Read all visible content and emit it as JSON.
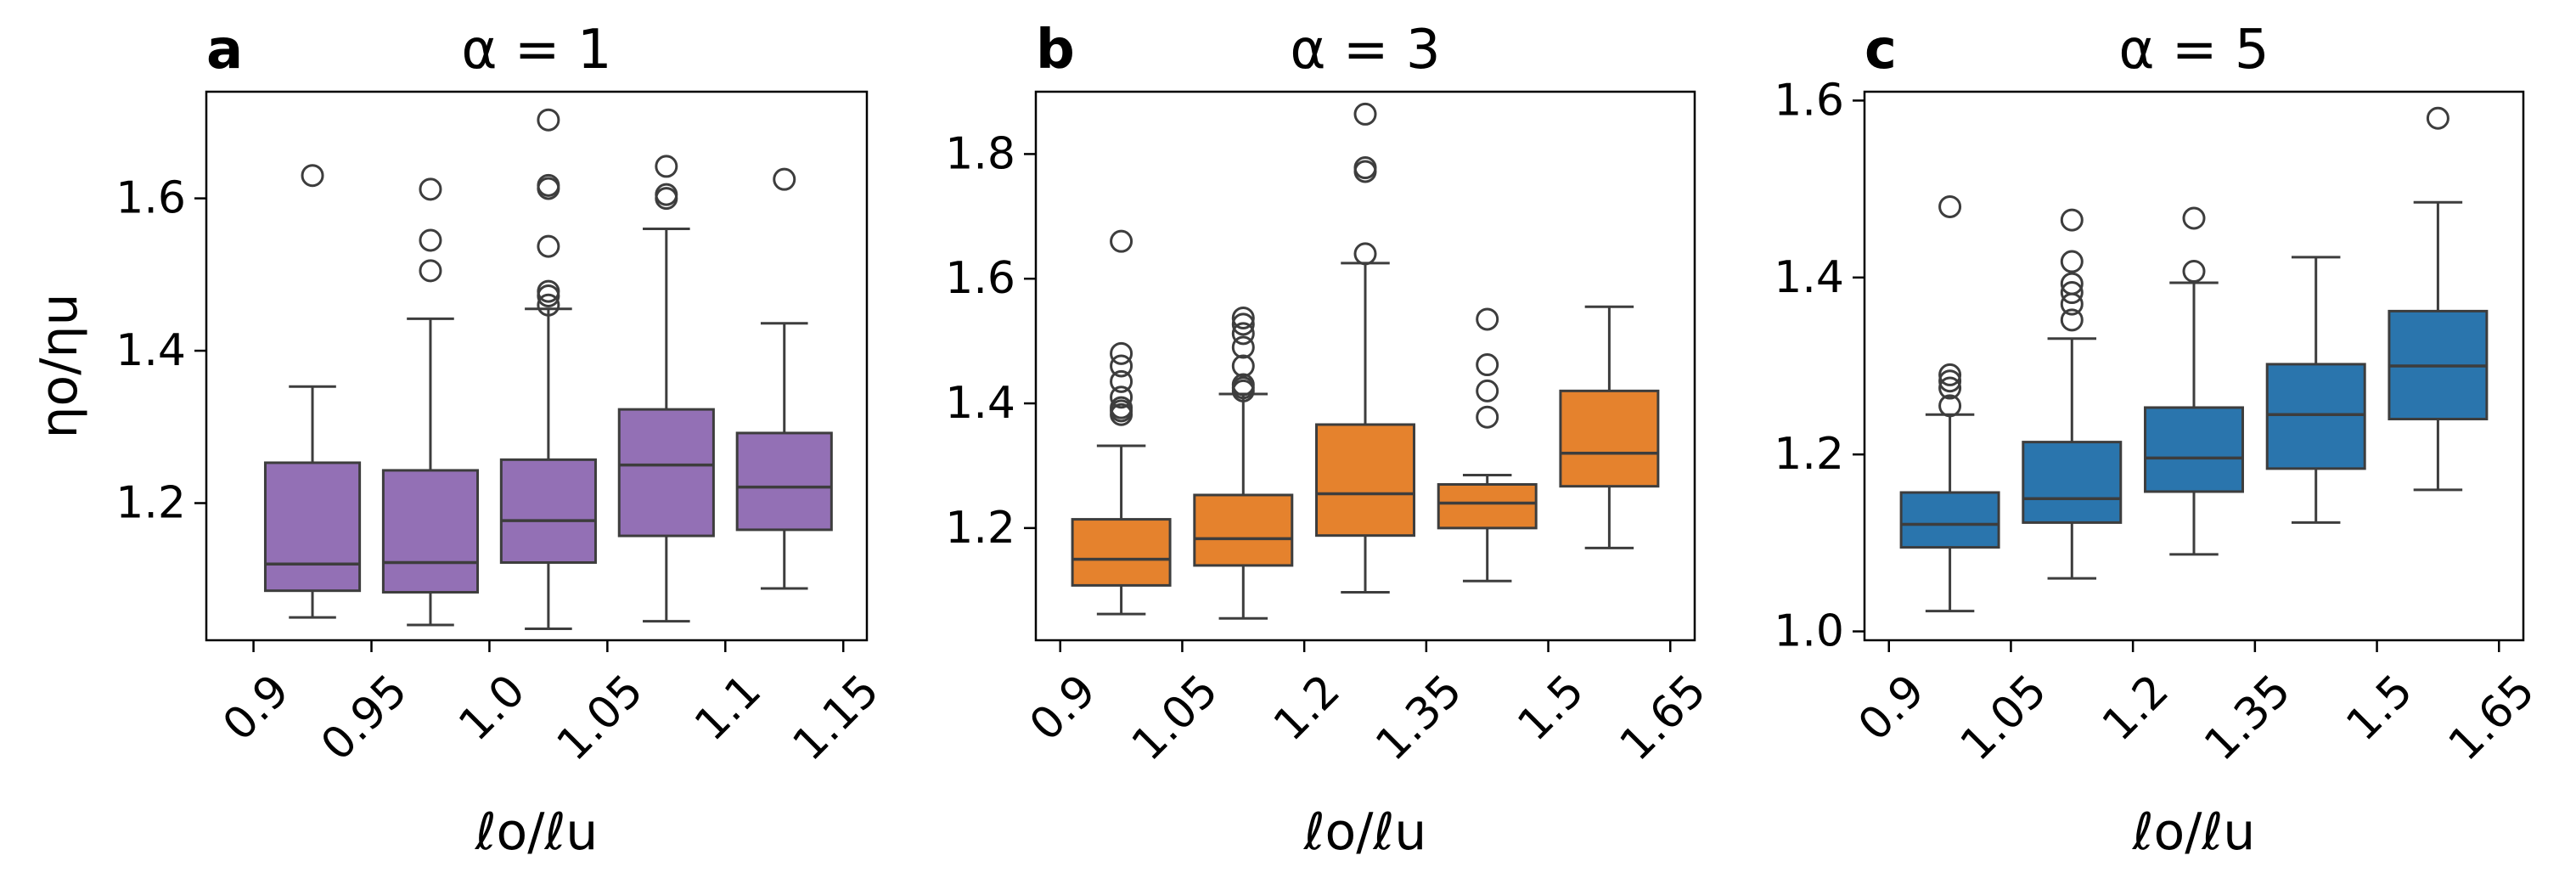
{
  "chart_data": [
    {
      "type": "box",
      "panel_letter": "a",
      "title": "α = 1",
      "xlabel": "ℓo/ℓu",
      "ylabel": "ηo/ηu",
      "color": "#9370b5",
      "xlim": [
        0.88,
        1.16
      ],
      "ylim": [
        1.02,
        1.74
      ],
      "xticks": [
        {
          "value": 0.9,
          "label": "0.9"
        },
        {
          "value": 0.95,
          "label": "0.95"
        },
        {
          "value": 1.0,
          "label": "1.0"
        },
        {
          "value": 1.05,
          "label": "1.05"
        },
        {
          "value": 1.1,
          "label": "1.1"
        },
        {
          "value": 1.15,
          "label": "1.15"
        }
      ],
      "yticks": [
        {
          "value": 1.2,
          "label": "1.2"
        },
        {
          "value": 1.4,
          "label": "1.4"
        },
        {
          "value": 1.6,
          "label": "1.6"
        }
      ],
      "boxes": [
        {
          "x": 0.925,
          "whislo": 1.05,
          "q1": 1.085,
          "med": 1.12,
          "q3": 1.253,
          "whishi": 1.353,
          "fliers": [
            1.63
          ]
        },
        {
          "x": 0.975,
          "whislo": 1.04,
          "q1": 1.083,
          "med": 1.122,
          "q3": 1.243,
          "whishi": 1.442,
          "fliers": [
            1.505,
            1.545,
            1.612
          ]
        },
        {
          "x": 1.025,
          "whislo": 1.035,
          "q1": 1.122,
          "med": 1.177,
          "q3": 1.257,
          "whishi": 1.455,
          "fliers": [
            1.46,
            1.472,
            1.478,
            1.537,
            1.613,
            1.617,
            1.703
          ]
        },
        {
          "x": 1.075,
          "whislo": 1.045,
          "q1": 1.157,
          "med": 1.25,
          "q3": 1.323,
          "whishi": 1.56,
          "fliers": [
            1.6,
            1.605,
            1.642
          ]
        },
        {
          "x": 1.125,
          "whislo": 1.088,
          "q1": 1.165,
          "med": 1.221,
          "q3": 1.292,
          "whishi": 1.436,
          "fliers": [
            1.625
          ]
        }
      ]
    },
    {
      "type": "box",
      "panel_letter": "b",
      "title": "α = 3",
      "xlabel": "ℓo/ℓu",
      "ylabel": "",
      "color": "#e5822d",
      "xlim": [
        0.87,
        1.68
      ],
      "ylim": [
        1.02,
        1.9
      ],
      "xticks": [
        {
          "value": 0.9,
          "label": "0.9"
        },
        {
          "value": 1.05,
          "label": "1.05"
        },
        {
          "value": 1.2,
          "label": "1.2"
        },
        {
          "value": 1.35,
          "label": "1.35"
        },
        {
          "value": 1.5,
          "label": "1.5"
        },
        {
          "value": 1.65,
          "label": "1.65"
        }
      ],
      "yticks": [
        {
          "value": 1.2,
          "label": "1.2"
        },
        {
          "value": 1.4,
          "label": "1.4"
        },
        {
          "value": 1.6,
          "label": "1.6"
        },
        {
          "value": 1.8,
          "label": "1.8"
        }
      ],
      "boxes": [
        {
          "x": 0.975,
          "whislo": 1.062,
          "q1": 1.108,
          "med": 1.15,
          "q3": 1.214,
          "whishi": 1.332,
          "fliers": [
            1.382,
            1.388,
            1.393,
            1.41,
            1.435,
            1.46,
            1.48,
            1.66
          ]
        },
        {
          "x": 1.125,
          "whislo": 1.055,
          "q1": 1.14,
          "med": 1.183,
          "q3": 1.253,
          "whishi": 1.415,
          "fliers": [
            1.42,
            1.425,
            1.43,
            1.46,
            1.49,
            1.512,
            1.527,
            1.537
          ]
        },
        {
          "x": 1.275,
          "whislo": 1.097,
          "q1": 1.188,
          "med": 1.255,
          "q3": 1.366,
          "whishi": 1.625,
          "fliers": [
            1.64,
            1.772,
            1.778,
            1.864
          ]
        },
        {
          "x": 1.425,
          "whislo": 1.115,
          "q1": 1.2,
          "med": 1.24,
          "q3": 1.27,
          "whishi": 1.285,
          "fliers": [
            1.378,
            1.42,
            1.462,
            1.535
          ]
        },
        {
          "x": 1.575,
          "whislo": 1.168,
          "q1": 1.267,
          "med": 1.32,
          "q3": 1.42,
          "whishi": 1.555,
          "fliers": []
        }
      ]
    },
    {
      "type": "box",
      "panel_letter": "c",
      "title": "α = 5",
      "xlabel": "ℓo/ℓu",
      "ylabel": "",
      "color": "#2a75ad",
      "xlim": [
        0.87,
        1.68
      ],
      "ylim": [
        0.99,
        1.61
      ],
      "xticks": [
        {
          "value": 0.9,
          "label": "0.9"
        },
        {
          "value": 1.05,
          "label": "1.05"
        },
        {
          "value": 1.2,
          "label": "1.2"
        },
        {
          "value": 1.35,
          "label": "1.35"
        },
        {
          "value": 1.5,
          "label": "1.5"
        },
        {
          "value": 1.65,
          "label": "1.65"
        }
      ],
      "yticks": [
        {
          "value": 1.0,
          "label": "1.0"
        },
        {
          "value": 1.2,
          "label": "1.2"
        },
        {
          "value": 1.4,
          "label": "1.4"
        },
        {
          "value": 1.6,
          "label": "1.6"
        }
      ],
      "boxes": [
        {
          "x": 0.975,
          "whislo": 1.023,
          "q1": 1.095,
          "med": 1.121,
          "q3": 1.157,
          "whishi": 1.245,
          "fliers": [
            1.255,
            1.275,
            1.283,
            1.29,
            1.48
          ]
        },
        {
          "x": 1.125,
          "whislo": 1.06,
          "q1": 1.123,
          "med": 1.15,
          "q3": 1.214,
          "whishi": 1.331,
          "fliers": [
            1.352,
            1.37,
            1.383,
            1.393,
            1.418,
            1.465
          ]
        },
        {
          "x": 1.275,
          "whislo": 1.087,
          "q1": 1.158,
          "med": 1.196,
          "q3": 1.253,
          "whishi": 1.394,
          "fliers": [
            1.407,
            1.467
          ]
        },
        {
          "x": 1.425,
          "whislo": 1.123,
          "q1": 1.184,
          "med": 1.245,
          "q3": 1.302,
          "whishi": 1.423,
          "fliers": []
        },
        {
          "x": 1.575,
          "whislo": 1.16,
          "q1": 1.24,
          "med": 1.3,
          "q3": 1.362,
          "whishi": 1.485,
          "fliers": [
            1.58
          ]
        }
      ]
    }
  ]
}
